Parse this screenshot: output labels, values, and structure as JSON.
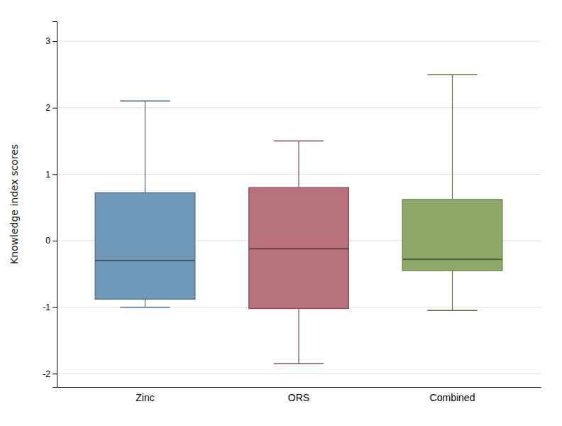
{
  "chart_data": {
    "type": "box",
    "categories": [
      "Zinc",
      "ORS",
      "Combined"
    ],
    "values": [
      {
        "whislo": -1.0,
        "q1": -0.88,
        "med": -0.3,
        "q3": 0.72,
        "whishi": 2.1
      },
      {
        "whislo": -1.85,
        "q1": -1.02,
        "med": -0.12,
        "q3": 0.8,
        "whishi": 1.5
      },
      {
        "whislo": -1.05,
        "q1": -0.45,
        "med": -0.28,
        "q3": 0.62,
        "whishi": 2.5
      }
    ],
    "colors": [
      "#7098b8",
      "#b8707a",
      "#8eaa68"
    ],
    "ylabel": "Knowledge index scores",
    "ylim": [
      -2.2,
      3.3
    ],
    "yticks": [
      -2,
      -1,
      0,
      1,
      2,
      3
    ],
    "grid": true
  }
}
